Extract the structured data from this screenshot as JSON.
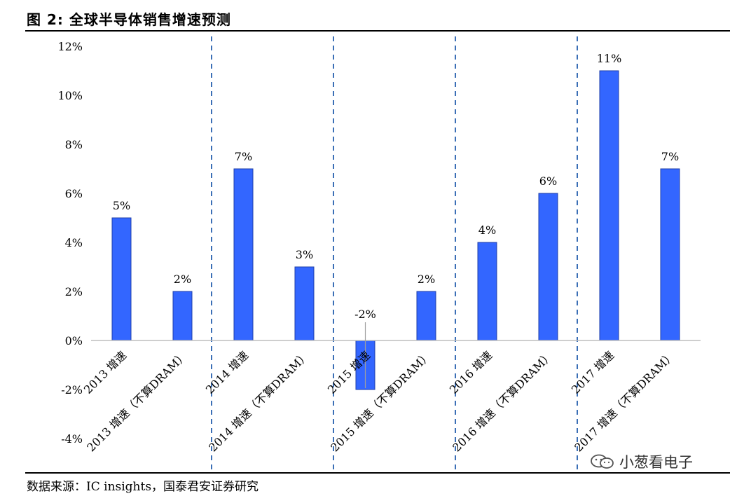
{
  "figure": {
    "title": "图 2:  全球半导体销售增速预测",
    "source": "数据来源：IC insights，国泰君安证券研究",
    "watermark": "小葱看电子"
  },
  "colors": {
    "bar": "#3366FF",
    "bar_stroke": "#1f3fa8",
    "divider": "#3b6fb6"
  },
  "chart_data": {
    "type": "bar",
    "title": "",
    "xlabel": "",
    "ylabel": "",
    "ylim": [
      -4,
      12
    ],
    "yticks": [
      "-4%",
      "-2%",
      "0%",
      "2%",
      "4%",
      "6%",
      "8%",
      "10%",
      "12%"
    ],
    "categories": [
      "2013 增速",
      "2013 增速（不算DRAM）",
      "2014 增速",
      "2014 增速（不算DRAM）",
      "2015 增速",
      "2015 增速（不算DRAM）",
      "2016 增速",
      "2016 增速（不算DRAM）",
      "2017 增速",
      "2017 增速（不算DRAM）"
    ],
    "values": [
      5,
      2,
      7,
      3,
      -2,
      2,
      4,
      6,
      11,
      7
    ],
    "data_labels": [
      "5%",
      "2%",
      "7%",
      "3%",
      "-2%",
      "2%",
      "4%",
      "6%",
      "11%",
      "7%"
    ],
    "group_dividers": "dashed vertical lines between year groups",
    "grid": false,
    "legend": "none"
  }
}
